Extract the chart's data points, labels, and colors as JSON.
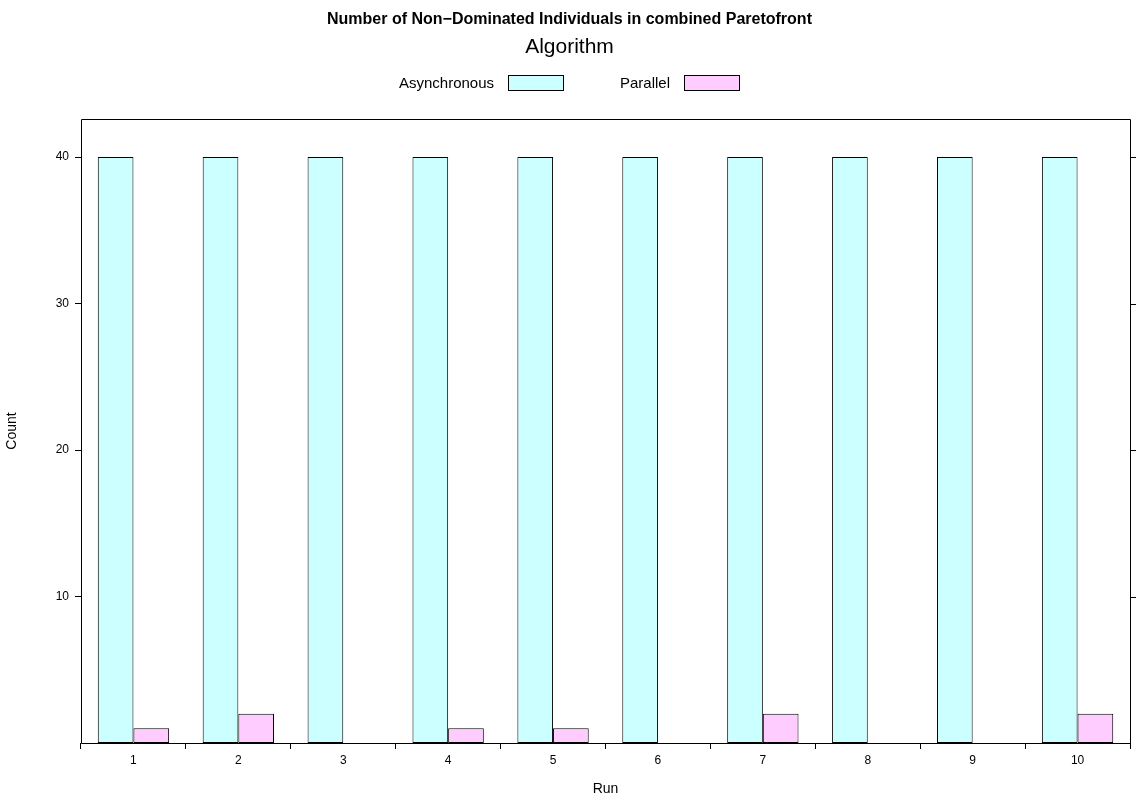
{
  "chart_data": {
    "type": "bar",
    "title": "Number of Non−Dominated Individuals in combined Paretofront",
    "legend_title": "Algorithm",
    "xlabel": "Run",
    "ylabel": "Count",
    "categories": [
      "1",
      "2",
      "3",
      "4",
      "5",
      "6",
      "7",
      "8",
      "9",
      "10"
    ],
    "series": [
      {
        "name": "Asynchronous",
        "color": "#ccffff",
        "values": [
          40,
          40,
          40,
          40,
          40,
          40,
          40,
          40,
          40,
          40
        ]
      },
      {
        "name": "Parallel",
        "color": "#ffccff",
        "values": [
          1,
          2,
          0,
          1,
          1,
          0,
          2,
          0,
          0,
          2
        ]
      }
    ],
    "ylim": [
      0,
      42.6
    ],
    "yticks": [
      10,
      20,
      30,
      40
    ],
    "grid": false,
    "legend": "top"
  }
}
